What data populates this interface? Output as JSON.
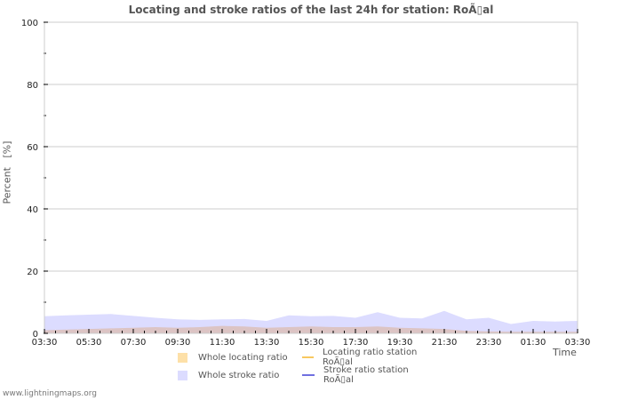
{
  "title": "Locating and stroke ratios of the last 24h for station: RoÃ▯al",
  "ylabel": "Percent   [%]",
  "xlabel": "Time",
  "footer": "www.lightningmaps.org",
  "legend": [
    {
      "label": "Whole locating ratio",
      "type": "area",
      "color": "#fde0a8"
    },
    {
      "label": "Locating ratio station RoÃ▯al",
      "type": "line",
      "color": "#f8c860"
    },
    {
      "label": "Whole stroke ratio",
      "type": "area",
      "color": "#dcdcff"
    },
    {
      "label": "Stroke ratio station RoÃ▯al",
      "type": "line",
      "color": "#7070e0"
    }
  ],
  "chart_data": {
    "type": "area",
    "title": "Locating and stroke ratios of the last 24h for station: RoÃ▯al",
    "xlabel": "Time",
    "ylabel": "Percent [%]",
    "ylim": [
      0,
      100
    ],
    "yticks": [
      0,
      20,
      40,
      60,
      80,
      100
    ],
    "xticks": [
      "03:30",
      "05:30",
      "07:30",
      "09:30",
      "11:30",
      "13:30",
      "15:30",
      "17:30",
      "19:30",
      "21:30",
      "23:30",
      "01:30",
      "03:30"
    ],
    "grid": true,
    "legend_position": "bottom",
    "x": [
      "03:30",
      "04:30",
      "05:30",
      "06:30",
      "07:30",
      "08:30",
      "09:30",
      "10:30",
      "11:30",
      "12:30",
      "13:30",
      "14:30",
      "15:30",
      "16:30",
      "17:30",
      "18:30",
      "19:30",
      "20:30",
      "21:30",
      "22:30",
      "23:30",
      "00:30",
      "01:30",
      "02:30",
      "03:30"
    ],
    "series": [
      {
        "name": "Whole stroke ratio",
        "values": [
          5.5,
          5.8,
          6.0,
          6.2,
          5.6,
          5.0,
          4.5,
          4.3,
          4.5,
          4.6,
          4.0,
          5.8,
          5.5,
          5.6,
          5.0,
          6.8,
          5.0,
          4.8,
          7.2,
          4.5,
          5.0,
          3.0,
          4.0,
          3.8,
          4.0
        ]
      },
      {
        "name": "Whole locating ratio",
        "values": [
          1.0,
          1.2,
          1.4,
          1.6,
          1.8,
          2.0,
          1.8,
          2.0,
          2.4,
          2.2,
          1.8,
          2.0,
          2.2,
          2.0,
          2.0,
          2.2,
          1.8,
          1.6,
          1.4,
          0.8,
          0.6,
          0.5,
          0.5,
          0.5,
          0.5
        ]
      },
      {
        "name": "Locating ratio station RoÃ▯al",
        "values": []
      },
      {
        "name": "Stroke ratio station RoÃ▯al",
        "values": []
      }
    ]
  }
}
